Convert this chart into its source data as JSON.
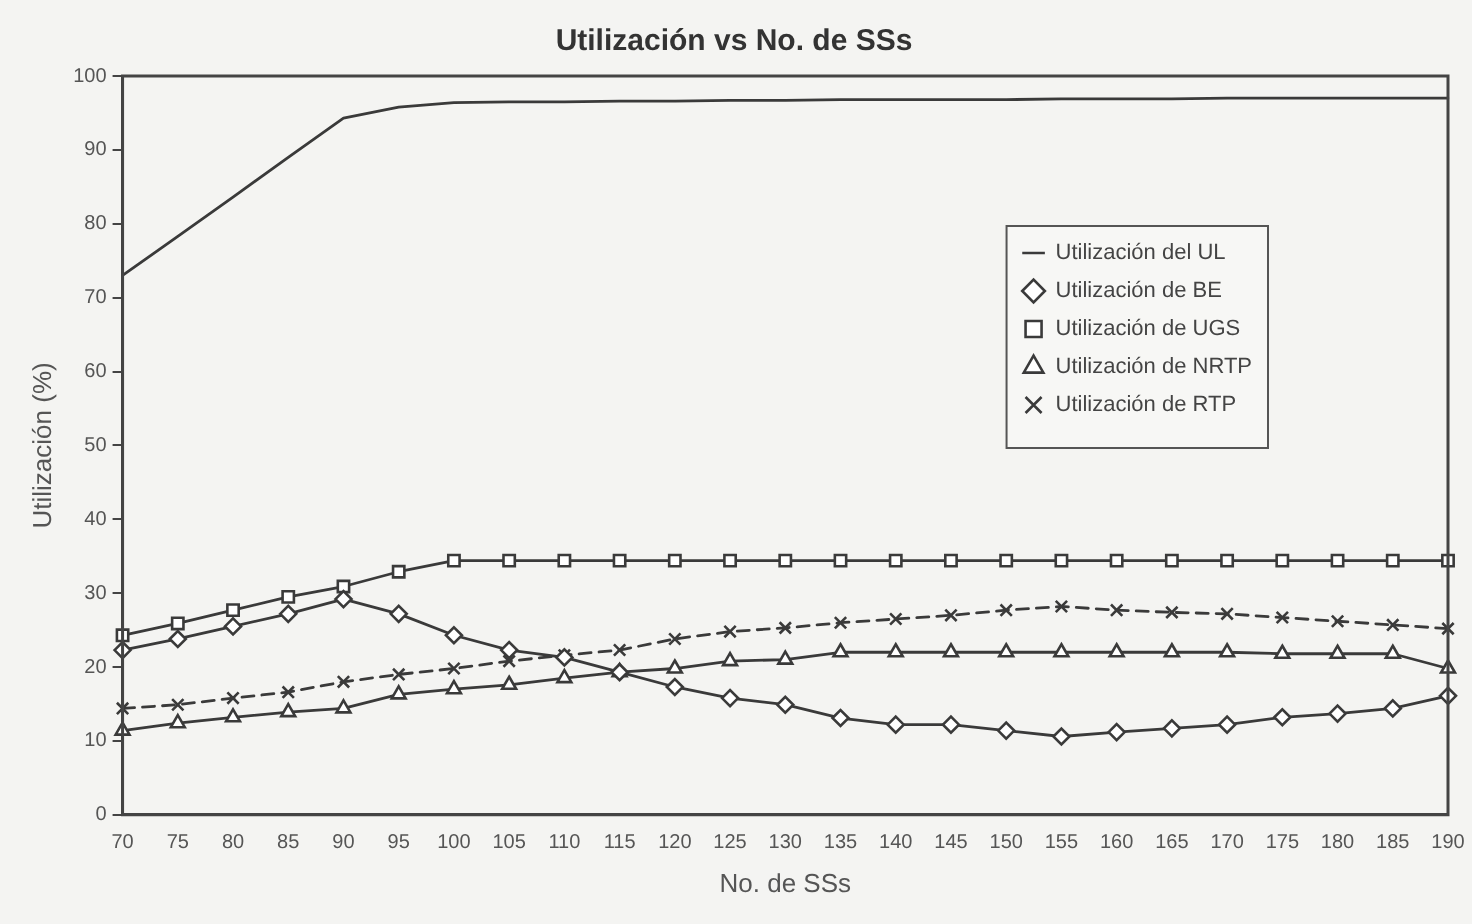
{
  "chart_data": {
    "type": "line",
    "title": "Utilización vs No. de SSs",
    "xlabel": "No. de SSs",
    "ylabel": "Utilización (%)",
    "categories": [
      "70",
      "75",
      "80",
      "85",
      "90",
      "95",
      "100",
      "105",
      "110",
      "115",
      "120",
      "125",
      "130",
      "135",
      "140",
      "145",
      "150",
      "155",
      "160",
      "165",
      "170",
      "175",
      "180",
      "185",
      "190"
    ],
    "ylim": [
      0,
      100
    ],
    "yticks": [
      0,
      10,
      20,
      30,
      40,
      50,
      60,
      70,
      80,
      90,
      100
    ],
    "grid": false,
    "legend": "right",
    "series": [
      {
        "name": "Utilización del UL",
        "color": "#3a3a3a",
        "marker": "none",
        "line_style": "solid",
        "values": [
          73,
          78.3,
          83.6,
          89,
          94.3,
          95.8,
          96.4,
          96.5,
          96.5,
          96.6,
          96.6,
          96.7,
          96.7,
          96.8,
          96.8,
          96.8,
          96.8,
          96.9,
          96.9,
          96.9,
          97,
          97,
          97,
          97,
          97
        ]
      },
      {
        "name": "Utilización de BE",
        "color": "#3a3a3a",
        "marker": "diamond",
        "line_style": "solid",
        "values": [
          22.3,
          23.8,
          25.5,
          27.2,
          29.2,
          27.2,
          24.3,
          22.3,
          21.3,
          19.3,
          17.3,
          15.8,
          14.9,
          13.1,
          12.2,
          12.2,
          11.4,
          10.6,
          11.2,
          11.7,
          12.2,
          13.2,
          13.7,
          14.4,
          16.1
        ]
      },
      {
        "name": "Utilización de UGS",
        "color": "#3a3a3a",
        "marker": "square",
        "line_style": "solid",
        "values": [
          24.3,
          25.9,
          27.7,
          29.5,
          30.9,
          32.9,
          34.4,
          34.4,
          34.4,
          34.4,
          34.4,
          34.4,
          34.4,
          34.4,
          34.4,
          34.4,
          34.4,
          34.4,
          34.4,
          34.4,
          34.4,
          34.4,
          34.4,
          34.4,
          34.4
        ]
      },
      {
        "name": "Utilización de NRTP",
        "color": "#3a3a3a",
        "marker": "triangle",
        "line_style": "solid",
        "values": [
          11.4,
          12.4,
          13.2,
          13.9,
          14.4,
          16.3,
          17,
          17.6,
          18.5,
          19.3,
          19.8,
          20.8,
          21,
          22,
          22,
          22,
          22,
          22,
          22,
          22,
          22,
          21.8,
          21.8,
          21.8,
          19.8
        ]
      },
      {
        "name": "Utilización de RTP",
        "color": "#3a3a3a",
        "marker": "cross",
        "line_style": "dashed",
        "values": [
          14.4,
          14.9,
          15.8,
          16.6,
          18,
          19,
          19.8,
          20.8,
          21.6,
          22.3,
          23.8,
          24.8,
          25.3,
          26,
          26.5,
          27,
          27.7,
          28.2,
          27.7,
          27.4,
          27.2,
          26.7,
          26.2,
          25.7,
          25.2
        ]
      }
    ]
  }
}
